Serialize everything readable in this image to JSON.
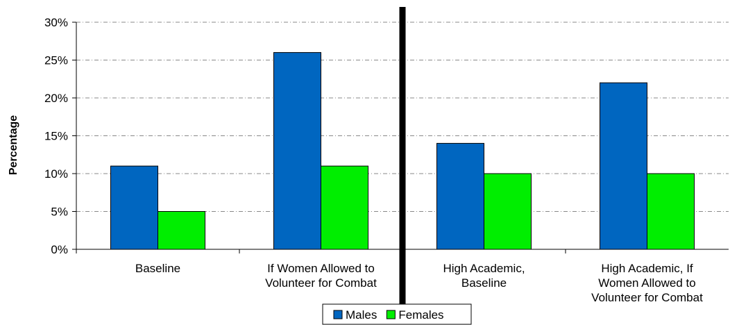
{
  "chart_data": {
    "type": "bar",
    "title": "",
    "xlabel": "",
    "ylabel": "Percentage",
    "ylim": [
      0,
      30
    ],
    "yticks": [
      "0%",
      "5%",
      "10%",
      "15%",
      "20%",
      "25%",
      "30%"
    ],
    "categories": [
      [
        "Baseline"
      ],
      [
        "If Women Allowed to",
        "Volunteer for Combat"
      ],
      [
        "High Academic,",
        "Baseline"
      ],
      [
        "High Academic, If",
        "Women Allowed to",
        "Volunteer for Combat"
      ]
    ],
    "series": [
      {
        "name": "Males",
        "color": "#0066C0",
        "values": [
          11,
          26,
          14,
          22
        ]
      },
      {
        "name": "Females",
        "color": "#00EE00",
        "values": [
          5,
          11,
          10,
          10
        ]
      }
    ],
    "grid": true,
    "legend_position": "bottom-center",
    "divider": "between category 2 and 3"
  }
}
